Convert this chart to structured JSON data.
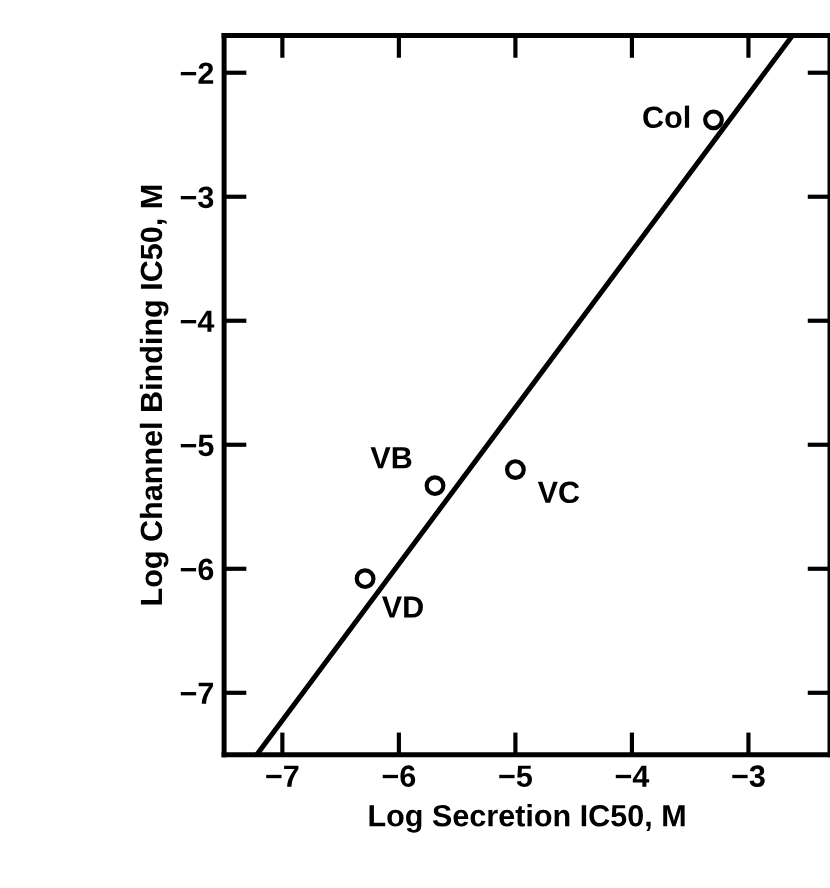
{
  "chart_data": {
    "type": "scatter",
    "xlabel": "Log Secretion IC50, M",
    "ylabel": "Log Channel Binding IC50, M",
    "xlim": [
      -7.5,
      -2.3
    ],
    "ylim": [
      -7.5,
      -1.7
    ],
    "xticks": [
      -7,
      -6,
      -5,
      -4,
      -3
    ],
    "yticks": [
      -2,
      -3,
      -4,
      -5,
      -6,
      -7
    ],
    "grid": false,
    "legend": false,
    "marker": "circle",
    "series": [
      {
        "color": "#000000",
        "x": [
          -3.3,
          -5.69,
          -5.0,
          -6.29
        ],
        "values": [
          -2.38,
          -5.33,
          -5.2,
          -6.08
        ]
      },
      {
        "type": "line",
        "color": "#000000",
        "x": [
          -7.22,
          -2.63
        ],
        "values": [
          -7.5,
          -1.71
        ],
        "marker": "none"
      }
    ],
    "annotations": [
      {
        "text": "Col",
        "x": -3.3,
        "y": -2.38
      },
      {
        "text": "VB",
        "x": -5.69,
        "y": -5.33
      },
      {
        "text": "VC",
        "x": -5.0,
        "y": -5.2
      },
      {
        "text": "VD",
        "x": -6.29,
        "y": -6.08
      }
    ]
  }
}
